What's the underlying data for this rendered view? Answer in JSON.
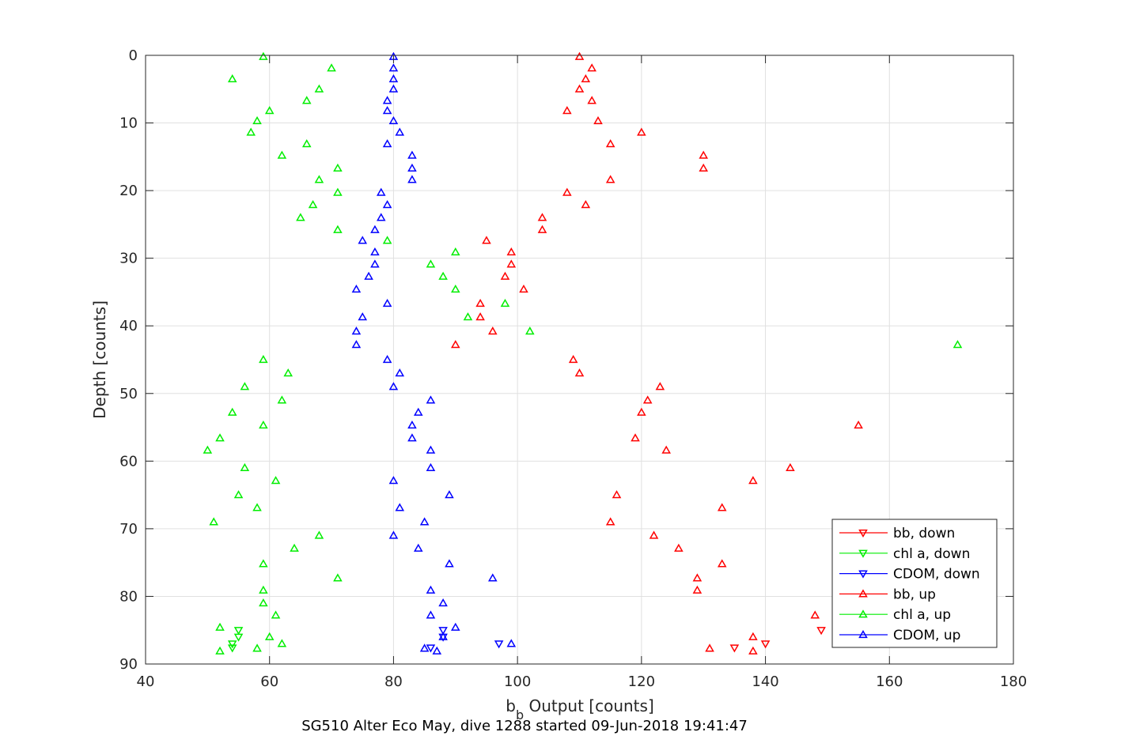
{
  "chart_data": {
    "type": "scatter",
    "xlabel_main": "b",
    "xlabel_sub": "b",
    "xlabel_rest": " Output [counts]",
    "ylabel": "Depth [counts]",
    "caption": "SG510 Alter Eco May, dive 1288 started 09-Jun-2018 19:41:47",
    "xlim": [
      40,
      180
    ],
    "ylim": [
      0,
      90
    ],
    "y_reversed": true,
    "grid": true,
    "legend_position": "bottom-right",
    "xticks": [
      40,
      60,
      80,
      100,
      120,
      140,
      160,
      180
    ],
    "yticks": [
      0,
      10,
      20,
      30,
      40,
      50,
      60,
      70,
      80,
      90
    ],
    "colors": {
      "bb": "#ff0000",
      "chl": "#00ee00",
      "cdom": "#0000ff",
      "grid": "#e0e0e0",
      "axis": "#262626"
    },
    "legend": [
      {
        "label": "bb, down",
        "color": "#ff0000",
        "marker": "down"
      },
      {
        "label": "chl a, down",
        "color": "#00ee00",
        "marker": "down"
      },
      {
        "label": "CDOM, down",
        "color": "#0000ff",
        "marker": "down"
      },
      {
        "label": "bb, up",
        "color": "#ff0000",
        "marker": "up"
      },
      {
        "label": "chl a, up",
        "color": "#00ee00",
        "marker": "up"
      },
      {
        "label": "CDOM, up",
        "color": "#0000ff",
        "marker": "up"
      }
    ],
    "series": [
      {
        "name": "bb, down",
        "color": "#ff0000",
        "marker": "down",
        "points": [
          [
            135,
            87.6
          ],
          [
            140,
            87.0
          ],
          [
            149,
            85.0
          ]
        ]
      },
      {
        "name": "chl a, down",
        "color": "#00ee00",
        "marker": "down",
        "points": [
          [
            55,
            85.0
          ],
          [
            55,
            86.0
          ],
          [
            54,
            87.0
          ],
          [
            54,
            87.6
          ]
        ]
      },
      {
        "name": "CDOM, down",
        "color": "#0000ff",
        "marker": "down",
        "points": [
          [
            88,
            85.0
          ],
          [
            88,
            86.0
          ],
          [
            97,
            87.0
          ],
          [
            86,
            87.6
          ]
        ]
      },
      {
        "name": "bb, up",
        "color": "#ff0000",
        "marker": "up",
        "points": [
          [
            110,
            0.2
          ],
          [
            112,
            1.9
          ],
          [
            111,
            3.5
          ],
          [
            110,
            5.0
          ],
          [
            112,
            6.7
          ],
          [
            108,
            8.2
          ],
          [
            113,
            9.7
          ],
          [
            120,
            11.4
          ],
          [
            115,
            13.1
          ],
          [
            130,
            14.8
          ],
          [
            130,
            16.7
          ],
          [
            115,
            18.4
          ],
          [
            108,
            20.3
          ],
          [
            111,
            22.1
          ],
          [
            104,
            24.0
          ],
          [
            104,
            25.8
          ],
          [
            95,
            27.4
          ],
          [
            99,
            29.1
          ],
          [
            99,
            30.9
          ],
          [
            98,
            32.7
          ],
          [
            101,
            34.6
          ],
          [
            94,
            36.7
          ],
          [
            94,
            38.7
          ],
          [
            96,
            40.8
          ],
          [
            90,
            42.8
          ],
          [
            109,
            45.0
          ],
          [
            110,
            47.0
          ],
          [
            123,
            49.0
          ],
          [
            121,
            51.0
          ],
          [
            120,
            52.8
          ],
          [
            155,
            54.7
          ],
          [
            119,
            56.6
          ],
          [
            124,
            58.4
          ],
          [
            144,
            61.0
          ],
          [
            138,
            62.9
          ],
          [
            116,
            65.0
          ],
          [
            133,
            66.9
          ],
          [
            115,
            69.0
          ],
          [
            122,
            71.0
          ],
          [
            126,
            72.9
          ],
          [
            133,
            75.2
          ],
          [
            129,
            77.3
          ],
          [
            129,
            79.1
          ],
          [
            148,
            82.8
          ],
          [
            138,
            86.0
          ],
          [
            131,
            87.7
          ],
          [
            138,
            88.1
          ]
        ]
      },
      {
        "name": "chl a, up",
        "color": "#00ee00",
        "marker": "up",
        "points": [
          [
            59,
            0.2
          ],
          [
            70,
            1.9
          ],
          [
            54,
            3.5
          ],
          [
            68,
            5.0
          ],
          [
            66,
            6.7
          ],
          [
            60,
            8.2
          ],
          [
            58,
            9.7
          ],
          [
            57,
            11.4
          ],
          [
            66,
            13.1
          ],
          [
            62,
            14.8
          ],
          [
            71,
            16.7
          ],
          [
            68,
            18.4
          ],
          [
            71,
            20.3
          ],
          [
            67,
            22.1
          ],
          [
            65,
            24.0
          ],
          [
            71,
            25.8
          ],
          [
            79,
            27.4
          ],
          [
            90,
            29.1
          ],
          [
            86,
            30.9
          ],
          [
            88,
            32.7
          ],
          [
            90,
            34.6
          ],
          [
            98,
            36.7
          ],
          [
            92,
            38.7
          ],
          [
            102,
            40.8
          ],
          [
            171,
            42.8
          ],
          [
            59,
            45.0
          ],
          [
            63,
            47.0
          ],
          [
            56,
            49.0
          ],
          [
            62,
            51.0
          ],
          [
            54,
            52.8
          ],
          [
            59,
            54.7
          ],
          [
            52,
            56.6
          ],
          [
            50,
            58.4
          ],
          [
            56,
            61.0
          ],
          [
            61,
            62.9
          ],
          [
            55,
            65.0
          ],
          [
            58,
            66.9
          ],
          [
            51,
            69.0
          ],
          [
            68,
            71.0
          ],
          [
            64,
            72.9
          ],
          [
            59,
            75.2
          ],
          [
            71,
            77.3
          ],
          [
            59,
            79.1
          ],
          [
            59,
            81.0
          ],
          [
            61,
            82.8
          ],
          [
            52,
            84.6
          ],
          [
            60,
            86.0
          ],
          [
            62,
            87.0
          ],
          [
            58,
            87.7
          ],
          [
            52,
            88.1
          ]
        ]
      },
      {
        "name": "CDOM, up",
        "color": "#0000ff",
        "marker": "up",
        "points": [
          [
            80,
            0.2
          ],
          [
            80,
            1.9
          ],
          [
            80,
            3.5
          ],
          [
            80,
            5.0
          ],
          [
            79,
            6.7
          ],
          [
            79,
            8.2
          ],
          [
            80,
            9.7
          ],
          [
            81,
            11.4
          ],
          [
            79,
            13.1
          ],
          [
            83,
            14.8
          ],
          [
            83,
            16.7
          ],
          [
            83,
            18.4
          ],
          [
            78,
            20.3
          ],
          [
            79,
            22.1
          ],
          [
            78,
            24.0
          ],
          [
            77,
            25.8
          ],
          [
            75,
            27.4
          ],
          [
            77,
            29.1
          ],
          [
            77,
            30.9
          ],
          [
            76,
            32.7
          ],
          [
            74,
            34.6
          ],
          [
            79,
            36.7
          ],
          [
            75,
            38.7
          ],
          [
            74,
            40.8
          ],
          [
            74,
            42.8
          ],
          [
            79,
            45.0
          ],
          [
            81,
            47.0
          ],
          [
            80,
            49.0
          ],
          [
            86,
            51.0
          ],
          [
            84,
            52.8
          ],
          [
            83,
            54.7
          ],
          [
            83,
            56.6
          ],
          [
            86,
            58.4
          ],
          [
            86,
            61.0
          ],
          [
            80,
            62.9
          ],
          [
            89,
            65.0
          ],
          [
            81,
            66.9
          ],
          [
            85,
            69.0
          ],
          [
            80,
            71.0
          ],
          [
            84,
            72.9
          ],
          [
            89,
            75.2
          ],
          [
            96,
            77.3
          ],
          [
            86,
            79.1
          ],
          [
            88,
            81.0
          ],
          [
            86,
            82.8
          ],
          [
            90,
            84.6
          ],
          [
            88,
            86.0
          ],
          [
            99,
            87.0
          ],
          [
            85,
            87.7
          ],
          [
            87,
            88.1
          ]
        ]
      }
    ]
  }
}
